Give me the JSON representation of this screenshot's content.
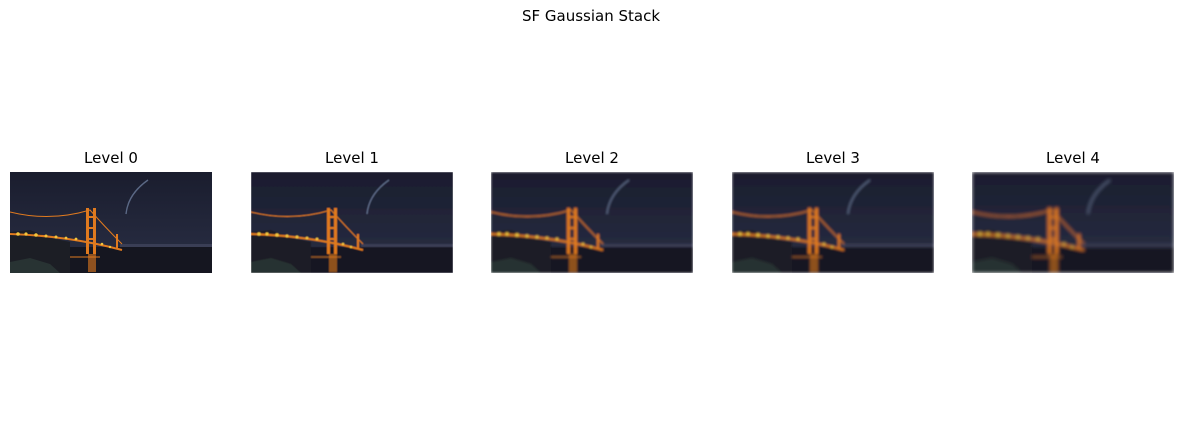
{
  "figure": {
    "title": "SF Gaussian Stack",
    "panels": [
      {
        "label": "Level 0",
        "blur": 0.0
      },
      {
        "label": "Level 1",
        "blur": 0.6
      },
      {
        "label": "Level 2",
        "blur": 1.0
      },
      {
        "label": "Level 3",
        "blur": 1.4
      },
      {
        "label": "Level 4",
        "blur": 1.8
      }
    ]
  },
  "colors": {
    "sky_top": "#1a1d2e",
    "sky_bottom": "#2a2f45",
    "water": "#151620",
    "bridge_glow": "#e07a1f",
    "lights": "#f3c43c"
  },
  "image_subject": "golden-gate-bridge-at-night"
}
